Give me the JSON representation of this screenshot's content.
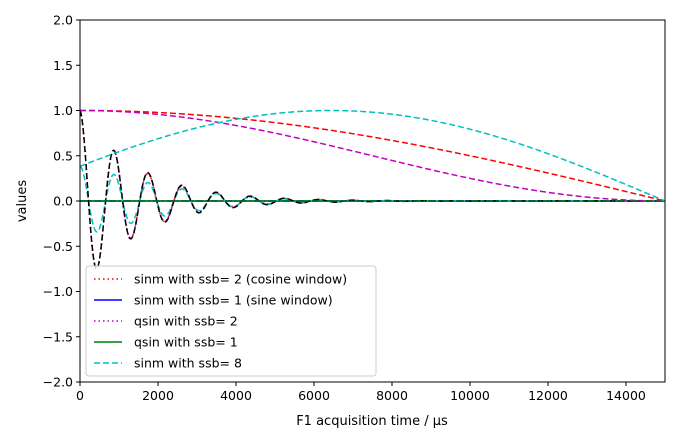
{
  "chart_data": {
    "type": "line",
    "title": "",
    "xlabel": "F1 acquisition time / µs",
    "ylabel": "values",
    "xlim": [
      0,
      15000
    ],
    "ylim": [
      -2.0,
      2.0
    ],
    "x_ticks": [
      0,
      2000,
      4000,
      6000,
      8000,
      10000,
      12000,
      14000
    ],
    "x_tick_labels": [
      "0",
      "2000",
      "4000",
      "6000",
      "8000",
      "10000",
      "12000",
      "14000"
    ],
    "y_ticks": [
      -2.0,
      -1.5,
      -1.0,
      -0.5,
      0.0,
      0.5,
      1.0,
      1.5,
      2.0
    ],
    "y_tick_labels": [
      "−2.0",
      "−1.5",
      "−1.0",
      "−0.5",
      "0.0",
      "0.5",
      "1.0",
      "1.5",
      "2.0"
    ],
    "grid": false,
    "legend_position": "lower-left",
    "t_max": 15000,
    "legend": [
      {
        "label": "sinm with ssb= 2 (cosine window)",
        "color": "#ff0000",
        "dash": "dotted"
      },
      {
        "label": "sinm with ssb= 1 (sine window)",
        "color": "#0000ff",
        "dash": "solid"
      },
      {
        "label": "qsin with ssb= 2",
        "color": "#bf00bf",
        "dash": "dotted"
      },
      {
        "label": "qsin with ssb= 1",
        "color": "#008000",
        "dash": "solid"
      },
      {
        "label": "sinm with ssb= 8",
        "color": "#00bfbf",
        "dash": "dashed"
      }
    ],
    "window_series": [
      {
        "window": "sinm",
        "ssb": 2,
        "color": "#ff0000",
        "dash": "dashed"
      },
      {
        "window": "sinm",
        "ssb": 1,
        "color": "#0000ff",
        "dash": "dashdot"
      },
      {
        "window": "qsin",
        "ssb": 2,
        "color": "#bf00bf",
        "dash": "dashed"
      },
      {
        "window": "qsin",
        "ssb": 1,
        "color": "#008000",
        "dash": "dashdot"
      },
      {
        "window": "sinm",
        "ssb": 8,
        "color": "#00bfbf",
        "dash": "dashed"
      }
    ],
    "fid_series": [
      {
        "window": "sinm",
        "ssb": 2,
        "color": "#ff0000",
        "dash": "dotted"
      },
      {
        "window": "sinm",
        "ssb": 1,
        "color": "#0000ff",
        "dash": "solid"
      },
      {
        "window": "qsin",
        "ssb": 2,
        "color": "#bf00bf",
        "dash": "dotted"
      },
      {
        "window": "qsin",
        "ssb": 1,
        "color": "#008000",
        "dash": "solid"
      },
      {
        "window": "sinm",
        "ssb": 8,
        "color": "#00bfbf",
        "dash": "dashed"
      },
      {
        "window": "none",
        "ssb": 0,
        "color": "#000000",
        "dash": "dashed"
      }
    ],
    "fid": {
      "period_us": 875,
      "decay_us": 1500
    }
  }
}
